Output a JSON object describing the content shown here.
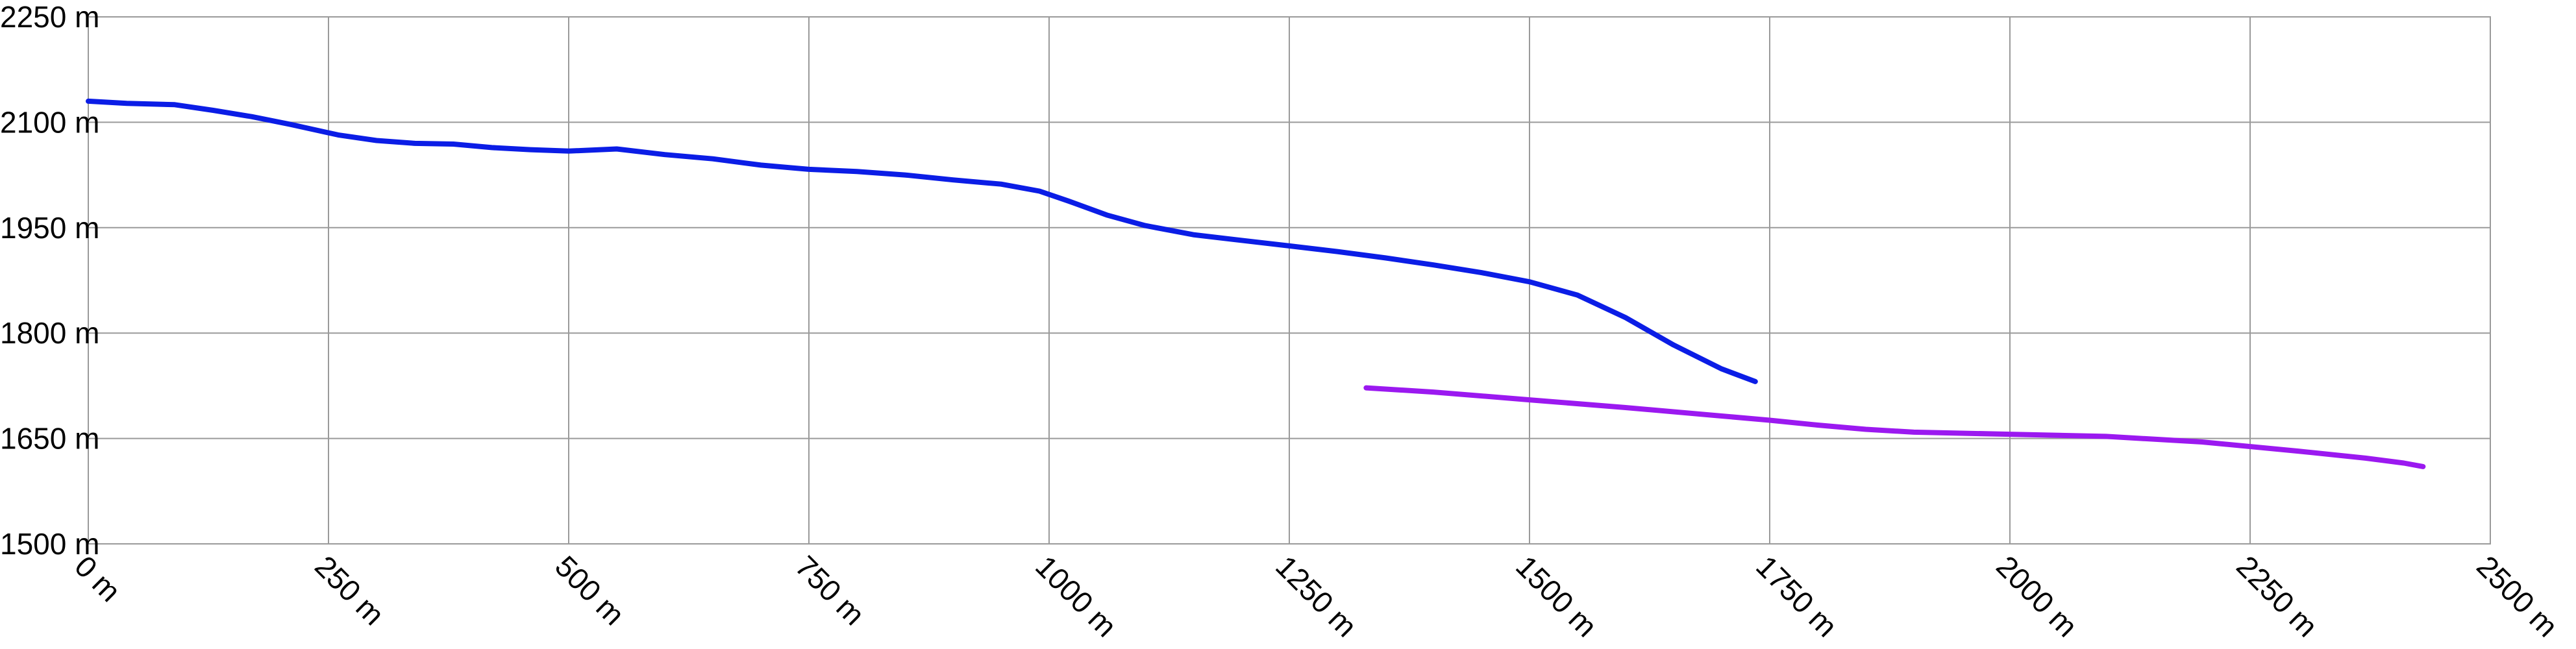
{
  "chart_data": {
    "type": "line",
    "title": "",
    "xlabel": "",
    "ylabel": "",
    "xlim": [
      0,
      2500
    ],
    "ylim": [
      1500,
      2250
    ],
    "x_ticks": [
      0,
      250,
      500,
      750,
      1000,
      1250,
      1500,
      1750,
      2000,
      2250,
      2500
    ],
    "y_ticks": [
      1500,
      1650,
      1800,
      1950,
      2100,
      2250
    ],
    "x_tick_labels": [
      "0 m",
      "250 m",
      "500 m",
      "750 m",
      "1000 m",
      "1250 m",
      "1500 m",
      "1750 m",
      "2000 m",
      "2250 m",
      "2500 m"
    ],
    "y_tick_labels": [
      "1500 m",
      "1650 m",
      "1800 m",
      "1950 m",
      "2100 m",
      "2250 m"
    ],
    "grid": true,
    "legend": "none",
    "series": [
      {
        "color": "#0b1de6",
        "points": [
          [
            0,
            2130
          ],
          [
            40,
            2127
          ],
          [
            90,
            2125
          ],
          [
            130,
            2117
          ],
          [
            170,
            2108
          ],
          [
            210,
            2097
          ],
          [
            260,
            2082
          ],
          [
            300,
            2074
          ],
          [
            340,
            2070
          ],
          [
            380,
            2069
          ],
          [
            420,
            2064
          ],
          [
            460,
            2061
          ],
          [
            500,
            2059
          ],
          [
            550,
            2062
          ],
          [
            600,
            2054
          ],
          [
            650,
            2048
          ],
          [
            700,
            2039
          ],
          [
            750,
            2033
          ],
          [
            800,
            2030
          ],
          [
            850,
            2025
          ],
          [
            900,
            2018
          ],
          [
            950,
            2012
          ],
          [
            990,
            2002
          ],
          [
            1020,
            1988
          ],
          [
            1060,
            1968
          ],
          [
            1100,
            1953
          ],
          [
            1150,
            1940
          ],
          [
            1200,
            1932
          ],
          [
            1250,
            1924
          ],
          [
            1300,
            1916
          ],
          [
            1350,
            1907
          ],
          [
            1400,
            1897
          ],
          [
            1450,
            1886
          ],
          [
            1500,
            1873
          ],
          [
            1550,
            1854
          ],
          [
            1600,
            1822
          ],
          [
            1650,
            1783
          ],
          [
            1700,
            1749
          ],
          [
            1735,
            1731
          ]
        ]
      },
      {
        "color": "#9b19f0",
        "points": [
          [
            1330,
            1722
          ],
          [
            1400,
            1716
          ],
          [
            1500,
            1705
          ],
          [
            1600,
            1694
          ],
          [
            1700,
            1682
          ],
          [
            1750,
            1676
          ],
          [
            1800,
            1669
          ],
          [
            1850,
            1663
          ],
          [
            1900,
            1659
          ],
          [
            2000,
            1656
          ],
          [
            2100,
            1653
          ],
          [
            2200,
            1645
          ],
          [
            2300,
            1632
          ],
          [
            2370,
            1622
          ],
          [
            2410,
            1615
          ],
          [
            2430,
            1610
          ]
        ]
      }
    ]
  }
}
